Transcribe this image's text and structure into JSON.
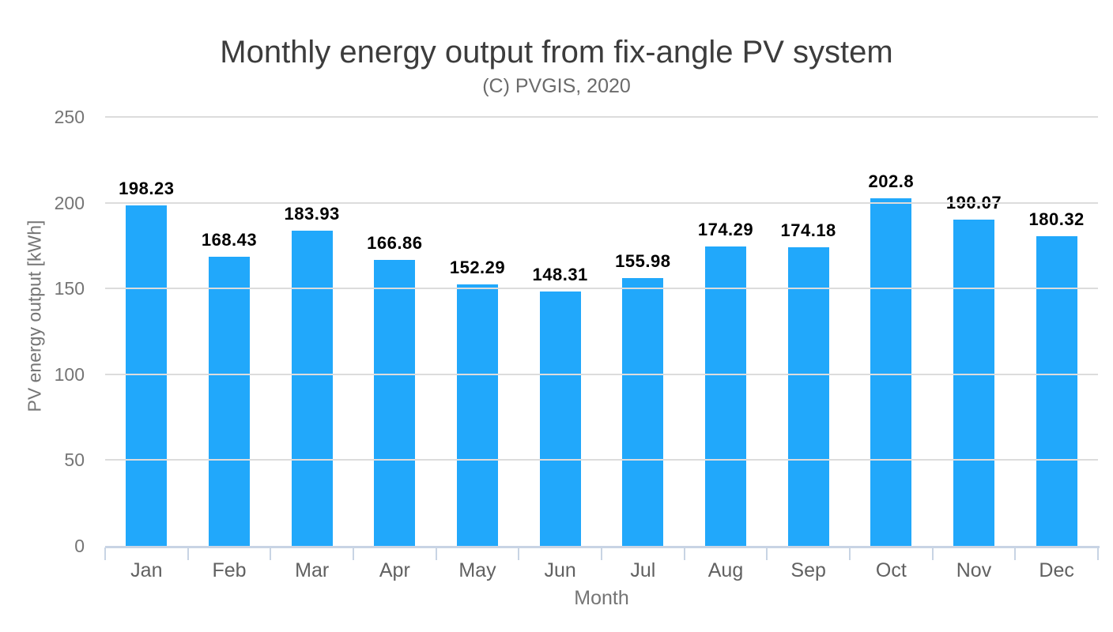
{
  "chart_data": {
    "type": "bar",
    "title": "Monthly energy output from fix-angle PV system",
    "subtitle": "(C) PVGIS, 2020",
    "xlabel": "Month",
    "ylabel": "PV energy output [kWh]",
    "categories": [
      "Jan",
      "Feb",
      "Mar",
      "Apr",
      "May",
      "Jun",
      "Jul",
      "Aug",
      "Sep",
      "Oct",
      "Nov",
      "Dec"
    ],
    "values": [
      198.23,
      168.43,
      183.93,
      166.86,
      152.29,
      148.31,
      155.98,
      174.29,
      174.18,
      202.8,
      190.07,
      180.32
    ],
    "value_labels": [
      "198.23",
      "168.43",
      "183.93",
      "166.86",
      "152.29",
      "148.31",
      "155.98",
      "174.29",
      "174.18",
      "202.8",
      "190.07",
      "180.32"
    ],
    "ylim": [
      0,
      250
    ],
    "yticks": [
      0,
      50,
      100,
      150,
      200,
      250
    ],
    "grid": true,
    "legend": "none"
  },
  "colors": {
    "bar": "#21a8fb",
    "gridline": "#dcdcdc",
    "axis_line": "#c8d4e4",
    "title": "#3c3c3c",
    "subtitle": "#6b6b6b",
    "y_tick_label": "#757575",
    "x_tick_label": "#616161",
    "value_label": "#000000",
    "background": "#ffffff"
  }
}
